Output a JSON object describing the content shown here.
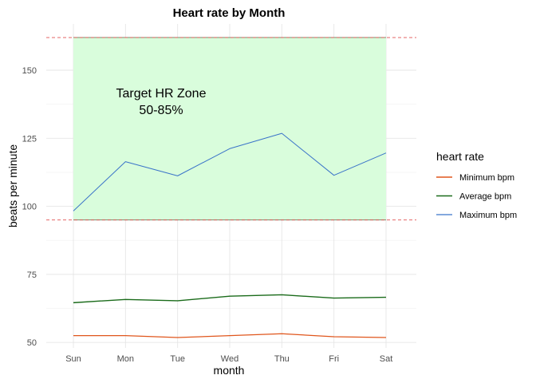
{
  "chart_data": {
    "type": "line",
    "title": "Heart rate by Month",
    "xlabel": "month",
    "ylabel": "beats per minute",
    "categories": [
      "Sun",
      "Mon",
      "Tue",
      "Wed",
      "Thu",
      "Fri",
      "Sat"
    ],
    "ylim": [
      48,
      167
    ],
    "yticks": [
      50,
      75,
      100,
      125,
      150
    ],
    "grid": true,
    "series": [
      {
        "name": "Minimum bpm",
        "color": "#e0561c",
        "width": 1.2,
        "values": [
          52.5,
          52.5,
          51.8,
          52.5,
          53.2,
          52.1,
          51.8
        ]
      },
      {
        "name": "Average bpm",
        "color": "#1a6b1a",
        "width": 1.4,
        "values": [
          64.6,
          65.8,
          65.3,
          67.0,
          67.5,
          66.3,
          66.6
        ]
      },
      {
        "name": "Maximum bpm",
        "color": "#3a73c9",
        "width": 1.0,
        "values": [
          98.3,
          116.4,
          111.2,
          121.2,
          126.8,
          111.4,
          119.6
        ]
      }
    ],
    "target_zone": {
      "lower": 95,
      "upper": 162,
      "fill": "#d9fddc",
      "line_color": "#e05050",
      "label_line1": "Target HR Zone",
      "label_line2": "50-85%",
      "label_center_value": 138.5
    },
    "legend": {
      "title": "heart rate",
      "position": "right"
    }
  }
}
